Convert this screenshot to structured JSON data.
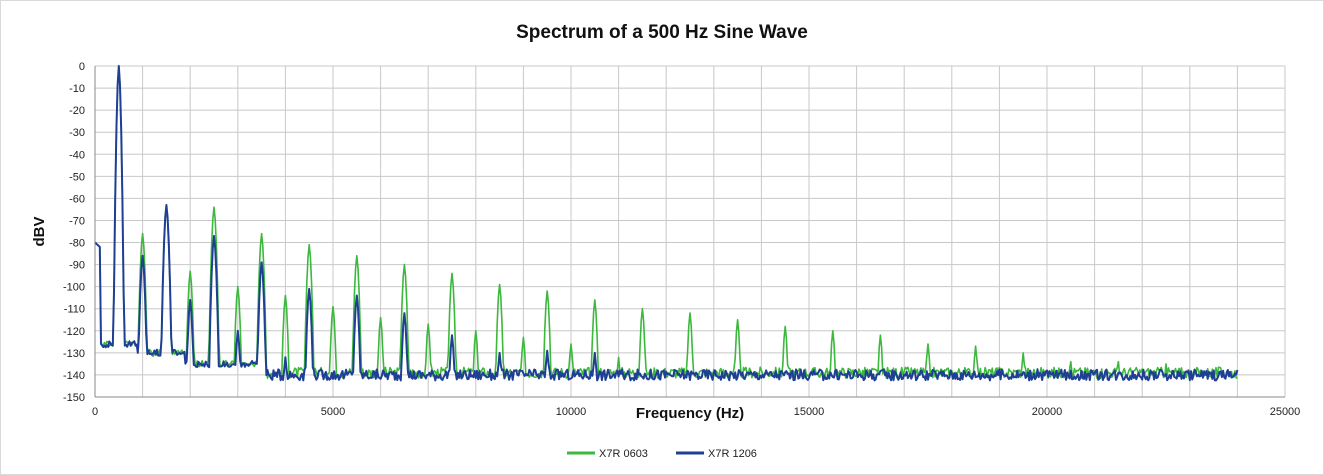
{
  "chart_data": {
    "type": "line",
    "title": "Spectrum of a 500 Hz Sine Wave",
    "xlabel": "Frequency (Hz)",
    "ylabel": "dBV",
    "xlim": [
      0,
      25000
    ],
    "ylim": [
      -150,
      0
    ],
    "x_ticks": [
      0,
      5000,
      10000,
      15000,
      20000,
      25000
    ],
    "x_tick_labels": [
      "0",
      "5000",
      "10000",
      "15000",
      "20000",
      "25000"
    ],
    "y_ticks": [
      0,
      -10,
      -20,
      -30,
      -40,
      -50,
      -60,
      -70,
      -80,
      -90,
      -100,
      -110,
      -120,
      -130,
      -140,
      -150
    ],
    "y_tick_labels": [
      "0",
      "-10",
      "-20",
      "-30",
      "-40",
      "-50",
      "-60",
      "-70",
      "-80",
      "-90",
      "-100",
      "-110",
      "-120",
      "-130",
      "-140",
      "-150"
    ],
    "x_minor_gridlines_hz": 1000,
    "grid": true,
    "legend_position": "bottom-center",
    "series": [
      {
        "name": "X7R 0603",
        "color": "#3cb83c",
        "noise_floor_db": -139,
        "harmonics": [
          {
            "f": 500,
            "db": 0
          },
          {
            "f": 1000,
            "db": -76
          },
          {
            "f": 1500,
            "db": -64
          },
          {
            "f": 2000,
            "db": -93
          },
          {
            "f": 2500,
            "db": -64
          },
          {
            "f": 3000,
            "db": -100
          },
          {
            "f": 3500,
            "db": -76
          },
          {
            "f": 4000,
            "db": -104
          },
          {
            "f": 4500,
            "db": -81
          },
          {
            "f": 5000,
            "db": -109
          },
          {
            "f": 5500,
            "db": -86
          },
          {
            "f": 6000,
            "db": -114
          },
          {
            "f": 6500,
            "db": -90
          },
          {
            "f": 7000,
            "db": -117
          },
          {
            "f": 7500,
            "db": -94
          },
          {
            "f": 8000,
            "db": -120
          },
          {
            "f": 8500,
            "db": -99
          },
          {
            "f": 9000,
            "db": -123
          },
          {
            "f": 9500,
            "db": -102
          },
          {
            "f": 10000,
            "db": -126
          },
          {
            "f": 10500,
            "db": -106
          },
          {
            "f": 11000,
            "db": -132
          },
          {
            "f": 11500,
            "db": -110
          },
          {
            "f": 12500,
            "db": -112
          },
          {
            "f": 13500,
            "db": -115
          },
          {
            "f": 14500,
            "db": -118
          },
          {
            "f": 15500,
            "db": -120
          },
          {
            "f": 16500,
            "db": -122
          },
          {
            "f": 17500,
            "db": -126
          },
          {
            "f": 18500,
            "db": -127
          },
          {
            "f": 19500,
            "db": -130
          },
          {
            "f": 20500,
            "db": -134
          },
          {
            "f": 21500,
            "db": -134
          },
          {
            "f": 22500,
            "db": -135
          }
        ]
      },
      {
        "name": "X7R 1206",
        "color": "#1f3f94",
        "noise_floor_db": -140,
        "harmonics": [
          {
            "f": 500,
            "db": 0
          },
          {
            "f": 1000,
            "db": -86
          },
          {
            "f": 1500,
            "db": -63
          },
          {
            "f": 2000,
            "db": -106
          },
          {
            "f": 2500,
            "db": -77
          },
          {
            "f": 3000,
            "db": -120
          },
          {
            "f": 3500,
            "db": -89
          },
          {
            "f": 4000,
            "db": -132
          },
          {
            "f": 4500,
            "db": -101
          },
          {
            "f": 5500,
            "db": -104
          },
          {
            "f": 6500,
            "db": -112
          },
          {
            "f": 7500,
            "db": -122
          },
          {
            "f": 8500,
            "db": -130
          },
          {
            "f": 9500,
            "db": -129
          },
          {
            "f": 10500,
            "db": -130
          }
        ]
      }
    ]
  }
}
